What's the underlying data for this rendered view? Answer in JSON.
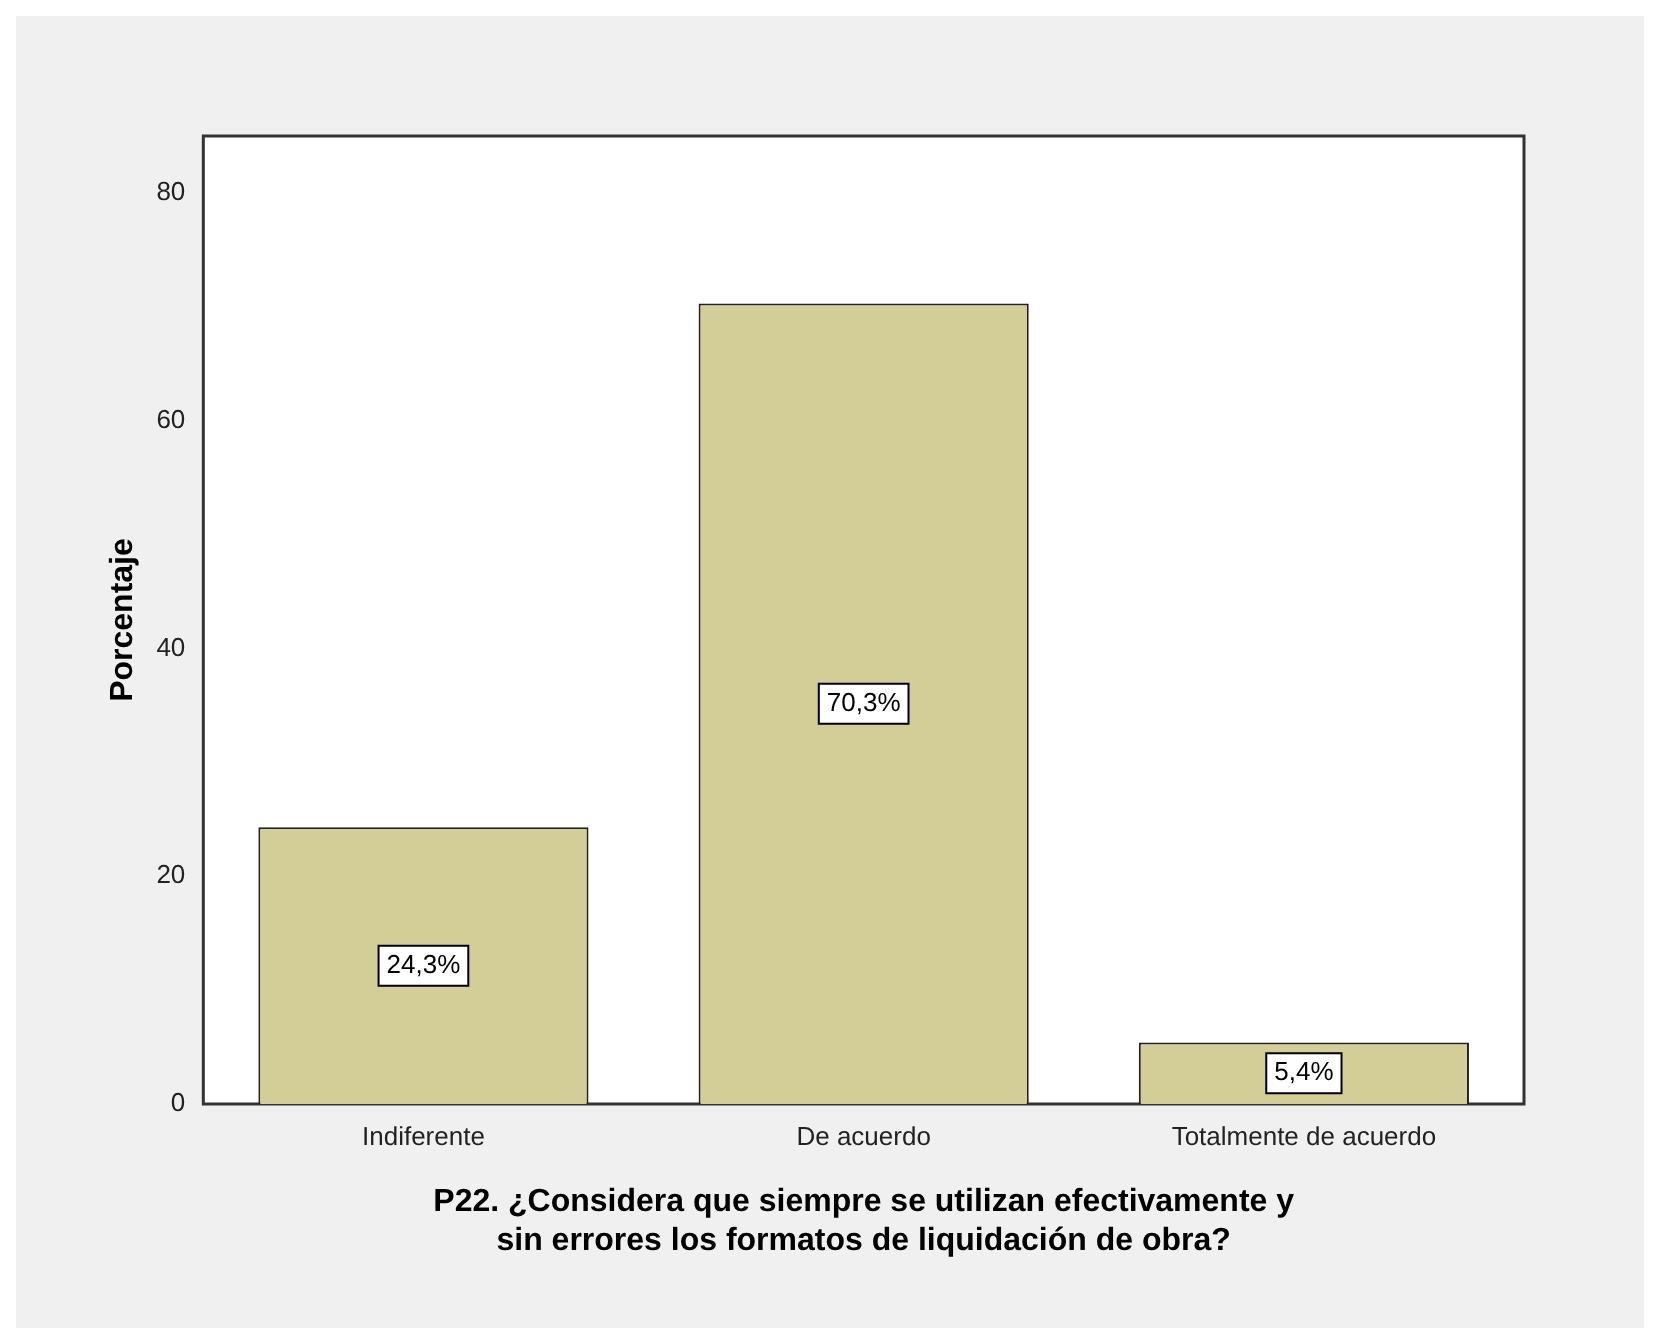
{
  "chart_data": {
    "type": "bar",
    "xlabel": "P22. ¿Considera que siempre se utilizan efectivamente y sin errores los formatos de liquidación de obra?",
    "ylabel": "Porcentaje",
    "categories": [
      "Indiferente",
      "De acuerdo",
      "Totalmente de acuerdo"
    ],
    "values": [
      24.3,
      70.3,
      5.4
    ],
    "value_labels": [
      "24,3%",
      "70,3%",
      "5,4%"
    ],
    "color": "#d3ce97",
    "ylim": [
      0,
      85
    ],
    "yticks": [
      0,
      20,
      40,
      60,
      80
    ],
    "grid": false,
    "legend": false
  }
}
